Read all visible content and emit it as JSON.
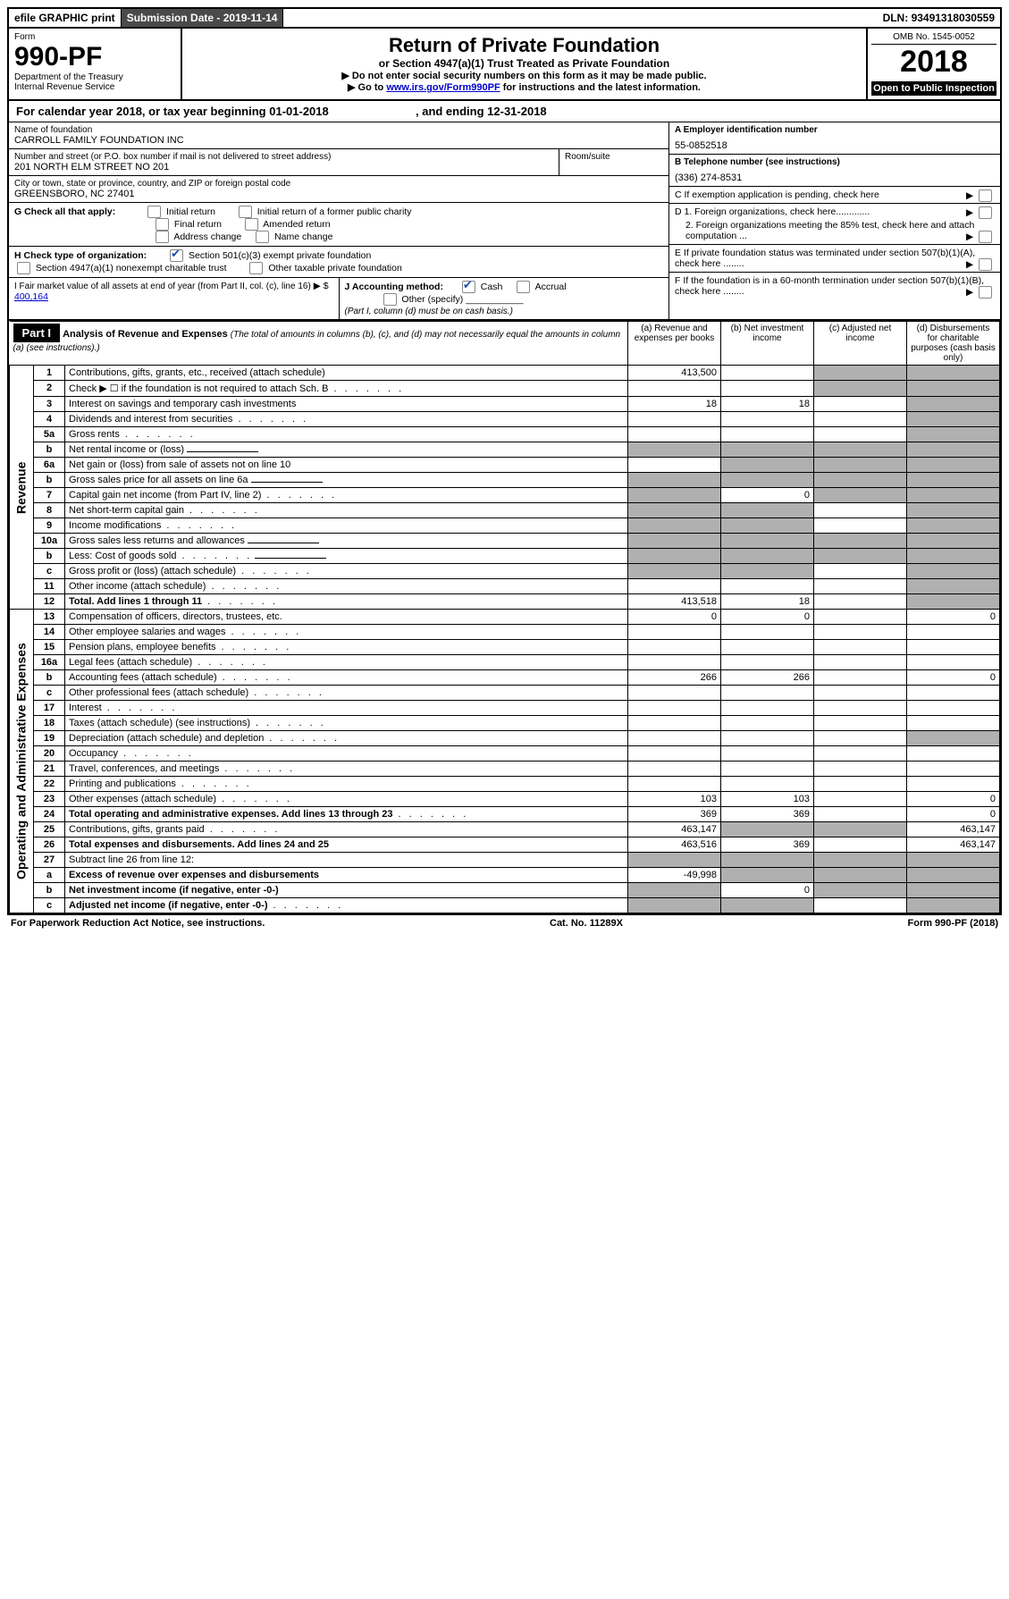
{
  "topbar": {
    "efile": "efile GRAPHIC print",
    "subdate_label": "Submission Date - ",
    "subdate": "2019-11-14",
    "dln_label": "DLN: ",
    "dln": "93491318030559"
  },
  "header": {
    "form_label": "Form",
    "form_no": "990-PF",
    "dept": "Department of the Treasury",
    "irs": "Internal Revenue Service",
    "title": "Return of Private Foundation",
    "subtitle": "or Section 4947(a)(1) Trust Treated as Private Foundation",
    "inst1": "▶ Do not enter social security numbers on this form as it may be made public.",
    "inst2_pre": "▶ Go to ",
    "inst2_link": "www.irs.gov/Form990PF",
    "inst2_post": " for instructions and the latest information.",
    "omb": "OMB No. 1545-0052",
    "year": "2018",
    "openpub": "Open to Public Inspection"
  },
  "calyear": {
    "pre": "For calendar year 2018, or tax year beginning ",
    "begin": "01-01-2018",
    "mid": " , and ending ",
    "end": "12-31-2018"
  },
  "foundation": {
    "name_label": "Name of foundation",
    "name": "CARROLL FAMILY FOUNDATION INC",
    "addr_label": "Number and street (or P.O. box number if mail is not delivered to street address)",
    "addr": "201 NORTH ELM STREET NO 201",
    "room_label": "Room/suite",
    "room": "",
    "city_label": "City or town, state or province, country, and ZIP or foreign postal code",
    "city": "GREENSBORO, NC  27401"
  },
  "right": {
    "ein_label": "A Employer identification number",
    "ein": "55-0852518",
    "tel_label": "B Telephone number (see instructions)",
    "tel": "(336) 274-8531",
    "c": "C If exemption application is pending, check here",
    "d1": "D 1. Foreign organizations, check here.............",
    "d2": "2. Foreign organizations meeting the 85% test, check here and attach computation ...",
    "e": "E  If private foundation status was terminated under section 507(b)(1)(A), check here ........",
    "f": "F  If the foundation is in a 60-month termination under section 507(b)(1)(B), check here ........"
  },
  "g": {
    "label": "G Check all that apply:",
    "opts": [
      "Initial return",
      "Initial return of a former public charity",
      "Final return",
      "Amended return",
      "Address change",
      "Name change"
    ]
  },
  "h": {
    "label": "H Check type of organization:",
    "o1": "Section 501(c)(3) exempt private foundation",
    "o2": "Section 4947(a)(1) nonexempt charitable trust",
    "o3": "Other taxable private foundation"
  },
  "i": {
    "label": "I Fair market value of all assets at end of year (from Part II, col. (c), line 16)",
    "arrow": "▶ $",
    "val": "400,164"
  },
  "j": {
    "label": "J Accounting method:",
    "cash": "Cash",
    "accrual": "Accrual",
    "other": "Other (specify)",
    "note": "(Part I, column (d) must be on cash basis.)"
  },
  "part1": {
    "label": "Part I",
    "title": "Analysis of Revenue and Expenses",
    "note": "(The total of amounts in columns (b), (c), and (d) may not necessarily equal the amounts in column (a) (see instructions).)",
    "col_a": "(a)  Revenue and expenses per books",
    "col_b": "(b)  Net investment income",
    "col_c": "(c)  Adjusted net income",
    "col_d": "(d)  Disbursements for charitable purposes (cash basis only)"
  },
  "sections": {
    "revenue": "Revenue",
    "opex": "Operating and Administrative Expenses"
  },
  "rows": [
    {
      "no": "1",
      "desc": "Contributions, gifts, grants, etc., received (attach schedule)",
      "a": "413,500",
      "b": "",
      "c": "s",
      "d": "s"
    },
    {
      "no": "2",
      "desc": "Check ▶ ☐ if the foundation is not required to attach Sch. B",
      "a": "",
      "b": "",
      "c": "s",
      "d": "s",
      "dots": true
    },
    {
      "no": "3",
      "desc": "Interest on savings and temporary cash investments",
      "a": "18",
      "b": "18",
      "c": "",
      "d": "s"
    },
    {
      "no": "4",
      "desc": "Dividends and interest from securities",
      "a": "",
      "b": "",
      "c": "",
      "d": "s",
      "dots": true
    },
    {
      "no": "5a",
      "desc": "Gross rents",
      "a": "",
      "b": "",
      "c": "",
      "d": "s",
      "dots": true
    },
    {
      "no": "b",
      "desc": "Net rental income or (loss)",
      "a": "s",
      "b": "s",
      "c": "s",
      "d": "s",
      "uline": true
    },
    {
      "no": "6a",
      "desc": "Net gain or (loss) from sale of assets not on line 10",
      "a": "",
      "b": "s",
      "c": "s",
      "d": "s"
    },
    {
      "no": "b",
      "desc": "Gross sales price for all assets on line 6a",
      "a": "s",
      "b": "s",
      "c": "s",
      "d": "s",
      "uline": true
    },
    {
      "no": "7",
      "desc": "Capital gain net income (from Part IV, line 2)",
      "a": "s",
      "b": "0",
      "c": "s",
      "d": "s",
      "dots": true
    },
    {
      "no": "8",
      "desc": "Net short-term capital gain",
      "a": "s",
      "b": "s",
      "c": "",
      "d": "s",
      "dots": true
    },
    {
      "no": "9",
      "desc": "Income modifications",
      "a": "s",
      "b": "s",
      "c": "",
      "d": "s",
      "dots": true
    },
    {
      "no": "10a",
      "desc": "Gross sales less returns and allowances",
      "a": "s",
      "b": "s",
      "c": "s",
      "d": "s",
      "uline": true
    },
    {
      "no": "b",
      "desc": "Less: Cost of goods sold",
      "a": "s",
      "b": "s",
      "c": "s",
      "d": "s",
      "dots": true,
      "uline": true
    },
    {
      "no": "c",
      "desc": "Gross profit or (loss) (attach schedule)",
      "a": "s",
      "b": "s",
      "c": "",
      "d": "s",
      "dots": true
    },
    {
      "no": "11",
      "desc": "Other income (attach schedule)",
      "a": "",
      "b": "",
      "c": "",
      "d": "s",
      "dots": true
    },
    {
      "no": "12",
      "desc": "Total. Add lines 1 through 11",
      "a": "413,518",
      "b": "18",
      "c": "",
      "d": "s",
      "bold": true,
      "dots": true
    },
    {
      "no": "13",
      "desc": "Compensation of officers, directors, trustees, etc.",
      "a": "0",
      "b": "0",
      "c": "",
      "d": "0"
    },
    {
      "no": "14",
      "desc": "Other employee salaries and wages",
      "a": "",
      "b": "",
      "c": "",
      "d": "",
      "dots": true
    },
    {
      "no": "15",
      "desc": "Pension plans, employee benefits",
      "a": "",
      "b": "",
      "c": "",
      "d": "",
      "dots": true
    },
    {
      "no": "16a",
      "desc": "Legal fees (attach schedule)",
      "a": "",
      "b": "",
      "c": "",
      "d": "",
      "dots": true
    },
    {
      "no": "b",
      "desc": "Accounting fees (attach schedule)",
      "a": "266",
      "b": "266",
      "c": "",
      "d": "0",
      "dots": true
    },
    {
      "no": "c",
      "desc": "Other professional fees (attach schedule)",
      "a": "",
      "b": "",
      "c": "",
      "d": "",
      "dots": true
    },
    {
      "no": "17",
      "desc": "Interest",
      "a": "",
      "b": "",
      "c": "",
      "d": "",
      "dots": true
    },
    {
      "no": "18",
      "desc": "Taxes (attach schedule) (see instructions)",
      "a": "",
      "b": "",
      "c": "",
      "d": "",
      "dots": true
    },
    {
      "no": "19",
      "desc": "Depreciation (attach schedule) and depletion",
      "a": "",
      "b": "",
      "c": "",
      "d": "s",
      "dots": true
    },
    {
      "no": "20",
      "desc": "Occupancy",
      "a": "",
      "b": "",
      "c": "",
      "d": "",
      "dots": true
    },
    {
      "no": "21",
      "desc": "Travel, conferences, and meetings",
      "a": "",
      "b": "",
      "c": "",
      "d": "",
      "dots": true
    },
    {
      "no": "22",
      "desc": "Printing and publications",
      "a": "",
      "b": "",
      "c": "",
      "d": "",
      "dots": true
    },
    {
      "no": "23",
      "desc": "Other expenses (attach schedule)",
      "a": "103",
      "b": "103",
      "c": "",
      "d": "0",
      "dots": true
    },
    {
      "no": "24",
      "desc": "Total operating and administrative expenses. Add lines 13 through 23",
      "a": "369",
      "b": "369",
      "c": "",
      "d": "0",
      "bold": true,
      "dots": true
    },
    {
      "no": "25",
      "desc": "Contributions, gifts, grants paid",
      "a": "463,147",
      "b": "s",
      "c": "s",
      "d": "463,147",
      "dots": true
    },
    {
      "no": "26",
      "desc": "Total expenses and disbursements. Add lines 24 and 25",
      "a": "463,516",
      "b": "369",
      "c": "",
      "d": "463,147",
      "bold": true
    },
    {
      "no": "27",
      "desc": "Subtract line 26 from line 12:",
      "a": "s",
      "b": "s",
      "c": "s",
      "d": "s"
    },
    {
      "no": "a",
      "desc": "Excess of revenue over expenses and disbursements",
      "a": "-49,998",
      "b": "s",
      "c": "s",
      "d": "s",
      "bold": true
    },
    {
      "no": "b",
      "desc": "Net investment income (if negative, enter -0-)",
      "a": "s",
      "b": "0",
      "c": "s",
      "d": "s",
      "bold": true
    },
    {
      "no": "c",
      "desc": "Adjusted net income (if negative, enter -0-)",
      "a": "s",
      "b": "s",
      "c": "",
      "d": "s",
      "bold": true,
      "dots": true
    }
  ],
  "footer": {
    "left": "For Paperwork Reduction Act Notice, see instructions.",
    "mid": "Cat. No. 11289X",
    "right": "Form 990-PF (2018)"
  }
}
